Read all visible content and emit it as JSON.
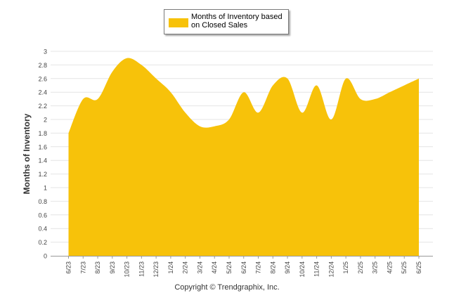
{
  "chart_data": {
    "type": "area",
    "ylabel": "Months of Inventory",
    "xlabel": "",
    "ylim": [
      0,
      3
    ],
    "ytick_step": 0.2,
    "grid": true,
    "legend_position": "top-center",
    "categories": [
      "6/23",
      "7/23",
      "8/23",
      "9/23",
      "10/23",
      "11/23",
      "12/23",
      "1/24",
      "2/24",
      "3/24",
      "4/24",
      "5/24",
      "6/24",
      "7/24",
      "8/24",
      "9/24",
      "10/24",
      "11/24",
      "12/24",
      "1/25",
      "2/25",
      "3/25",
      "4/25",
      "5/25",
      "6/25"
    ],
    "series": [
      {
        "name": "Months of Inventory based on Closed Sales",
        "color": "#f7c20a",
        "values": [
          1.8,
          2.3,
          2.3,
          2.7,
          2.9,
          2.8,
          2.6,
          2.4,
          2.1,
          1.9,
          1.9,
          2.0,
          2.4,
          2.1,
          2.5,
          2.6,
          2.1,
          2.5,
          2.0,
          2.6,
          2.3,
          2.3,
          2.4,
          2.5,
          2.6
        ]
      }
    ]
  },
  "legend": {
    "label": "Months of Inventory based on Closed Sales",
    "color": "#f7c20a"
  },
  "footer": "Copyright © Trendgraphix, Inc."
}
